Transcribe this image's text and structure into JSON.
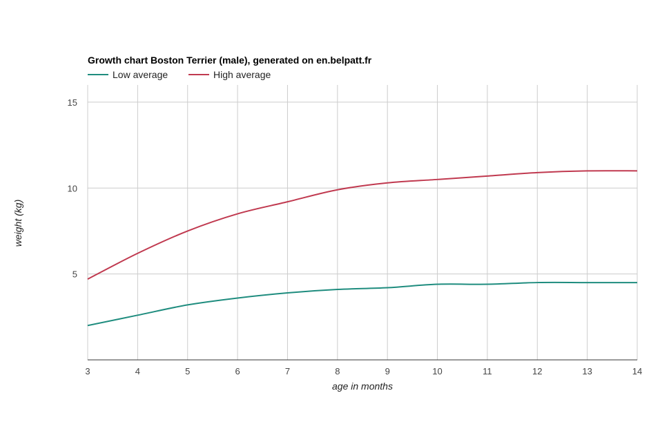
{
  "chart_data": {
    "type": "line",
    "title": "Growth chart Boston Terrier (male), generated on en.belpatt.fr",
    "xlabel": "age in months",
    "ylabel": "weight (kg)",
    "xlim": [
      3,
      14
    ],
    "ylim": [
      0,
      16
    ],
    "x_ticks": [
      3,
      4,
      5,
      6,
      7,
      8,
      9,
      10,
      11,
      12,
      13,
      14
    ],
    "y_ticks": [
      5,
      10,
      15
    ],
    "grid": true,
    "legend_position": "top-left",
    "x": [
      3,
      4,
      5,
      6,
      7,
      8,
      9,
      10,
      11,
      12,
      13,
      14
    ],
    "series": [
      {
        "name": "Low average",
        "color": "#1e8c7e",
        "values": [
          2.0,
          2.6,
          3.2,
          3.6,
          3.9,
          4.1,
          4.2,
          4.4,
          4.4,
          4.5,
          4.5,
          4.5
        ]
      },
      {
        "name": "High average",
        "color": "#c0394f",
        "values": [
          4.7,
          6.2,
          7.5,
          8.5,
          9.2,
          9.9,
          10.3,
          10.5,
          10.7,
          10.9,
          11.0,
          11.0
        ]
      }
    ]
  }
}
